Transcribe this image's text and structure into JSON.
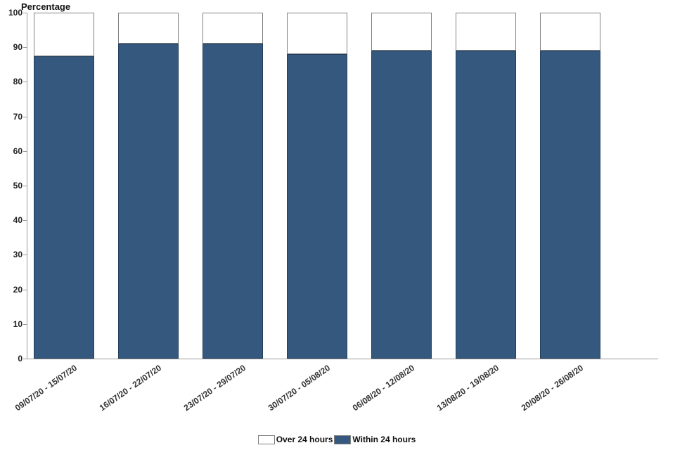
{
  "chart_data": {
    "type": "bar",
    "stacked": true,
    "title": "",
    "ylabel": "Percentage",
    "xlabel": "",
    "ylim": [
      0,
      100
    ],
    "ytick_step": 10,
    "grid": false,
    "legend_position": "bottom",
    "categories": [
      "09/07/20 - 15/07/20",
      "16/07/20 - 22/07/20",
      "23/07/20 - 29/07/20",
      "30/07/20 - 05/08/20",
      "06/08/20 - 12/08/20",
      "13/08/20 - 19/08/20",
      "20/08/20 - 26/08/20"
    ],
    "series": [
      {
        "name": "Within 24 hours",
        "color": "#34587E",
        "values": [
          87.5,
          91,
          91,
          88,
          89,
          89,
          89
        ]
      },
      {
        "name": "Over 24 hours",
        "color": "#FFFFFF",
        "values": [
          12.5,
          9,
          9,
          12,
          11,
          11,
          11
        ]
      }
    ],
    "legend": [
      "Over 24 hours",
      "Within 24 hours"
    ]
  }
}
